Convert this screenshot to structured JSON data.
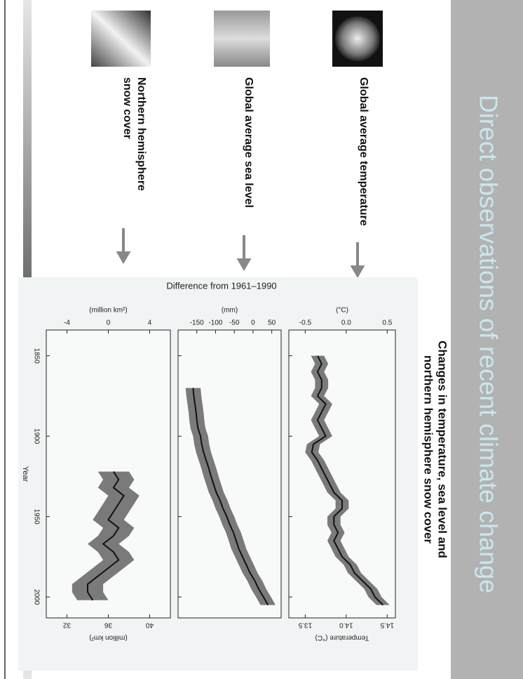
{
  "title": "Direct observations of recent climate change",
  "rows": [
    {
      "label": [
        "Global average temperature"
      ]
    },
    {
      "label": [
        "Global average sea level"
      ]
    },
    {
      "label": [
        "Northern hemisphere",
        "snow cover"
      ]
    }
  ],
  "chart_data": {
    "type": "line",
    "title": [
      "Changes in temperature, sea level and",
      "northern hemisphere snow cover"
    ],
    "ylabel": "Difference from 1961–1990",
    "xlabel": "Year",
    "xlim": [
      1834,
      2013
    ],
    "xticks": [
      1850,
      1900,
      1950,
      2000
    ],
    "color": "#111111",
    "band_color": "#7a7a7a",
    "panels": [
      {
        "ylabel": "(°C)",
        "ylim": [
          -0.7,
          0.6
        ],
        "yticks": [
          -0.5,
          {
            "value": 0,
            "label": "0.0"
          },
          0.5
        ],
        "y2label": "Temperature (°C)",
        "y2lim": [
          13.3,
          14.6
        ],
        "y2ticks": [
          13.5,
          {
            "value": 14,
            "label": "14.0"
          },
          14.5
        ],
        "band": 0.08,
        "x": [
          1850,
          1855,
          1860,
          1865,
          1870,
          1875,
          1880,
          1885,
          1890,
          1895,
          1900,
          1905,
          1910,
          1915,
          1920,
          1925,
          1930,
          1935,
          1940,
          1945,
          1950,
          1955,
          1960,
          1965,
          1970,
          1975,
          1980,
          1985,
          1990,
          1995,
          2000,
          2005
        ],
        "values": [
          -0.35,
          -0.3,
          -0.35,
          -0.3,
          -0.3,
          -0.35,
          -0.25,
          -0.3,
          -0.35,
          -0.3,
          -0.25,
          -0.4,
          -0.42,
          -0.35,
          -0.3,
          -0.25,
          -0.2,
          -0.15,
          -0.05,
          -0.05,
          -0.15,
          -0.15,
          -0.1,
          -0.15,
          -0.1,
          -0.05,
          0.05,
          0.1,
          0.2,
          0.3,
          0.35,
          0.45
        ]
      },
      {
        "ylabel": "(mm)",
        "ylim": [
          -200,
          75
        ],
        "yticks": [
          -150,
          -100,
          -50,
          0,
          50
        ],
        "band": 20,
        "x": [
          1870,
          1875,
          1880,
          1885,
          1890,
          1895,
          1900,
          1905,
          1910,
          1915,
          1920,
          1925,
          1930,
          1935,
          1940,
          1945,
          1950,
          1955,
          1960,
          1965,
          1970,
          1975,
          1980,
          1985,
          1990,
          1995,
          2000,
          2005
        ],
        "values": [
          -160,
          -158,
          -155,
          -152,
          -150,
          -147,
          -140,
          -137,
          -132,
          -125,
          -118,
          -112,
          -105,
          -98,
          -88,
          -80,
          -70,
          -62,
          -52,
          -45,
          -38,
          -28,
          -18,
          -8,
          5,
          15,
          28,
          40
        ]
      },
      {
        "ylabel": "(million km²)",
        "ylim": [
          -6,
          6
        ],
        "yticks": [
          -4,
          0,
          4
        ],
        "y2label": "(million km²)",
        "y2lim": [
          30,
          42
        ],
        "y2ticks": [
          32,
          36,
          40
        ],
        "band": 1.5,
        "x": [
          1922,
          1927,
          1932,
          1937,
          1942,
          1947,
          1952,
          1957,
          1962,
          1967,
          1972,
          1977,
          1982,
          1987,
          1992,
          1997,
          2002
        ],
        "values": [
          0.5,
          1.0,
          0.5,
          1.5,
          1.0,
          0.5,
          0,
          1.0,
          0.5,
          -0.5,
          0.5,
          1.0,
          0,
          -1.0,
          -2.0,
          -2.0,
          -1.5
        ]
      }
    ]
  }
}
